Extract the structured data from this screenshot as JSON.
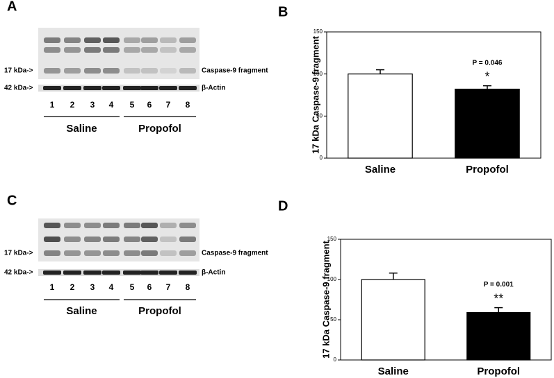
{
  "chart_data": [
    {
      "type": "bar",
      "panel_label": "B",
      "ylabel": "17 kDa Caspase-9 fragment",
      "categories": [
        "Saline",
        "Propofol"
      ],
      "values": [
        100,
        82
      ],
      "errors": [
        5,
        4
      ],
      "colors": [
        "#ffffff",
        "#000000"
      ],
      "ylim": [
        0,
        150
      ],
      "yticks": [
        0,
        50,
        100,
        150
      ],
      "p_value": "P = 0.046",
      "significance": "*"
    },
    {
      "type": "bar",
      "panel_label": "D",
      "ylabel": "17 kDa Caspase-9 fragment",
      "categories": [
        "Saline",
        "Propofol"
      ],
      "values": [
        100,
        59
      ],
      "errors": [
        8,
        6
      ],
      "colors": [
        "#ffffff",
        "#000000"
      ],
      "ylim": [
        0,
        150
      ],
      "yticks": [
        0,
        50,
        100,
        150
      ],
      "p_value": "P = 0.001",
      "significance": "**"
    }
  ],
  "blots": [
    {
      "panel_label": "A",
      "markers": [
        "17 kDa->",
        "42 kDa->"
      ],
      "bands": [
        "Caspase-9 fragment",
        "β-Actin"
      ],
      "lanes": [
        "1",
        "2",
        "3",
        "4",
        "5",
        "6",
        "7",
        "8"
      ],
      "groups": [
        "Saline",
        "Propofol"
      ]
    },
    {
      "panel_label": "C",
      "markers": [
        "17 kDa->",
        "42 kDa->"
      ],
      "bands": [
        "Caspase-9 fragment",
        "β-Actin"
      ],
      "lanes": [
        "1",
        "2",
        "3",
        "4",
        "5",
        "6",
        "7",
        "8"
      ],
      "groups": [
        "Saline",
        "Propofol"
      ]
    }
  ]
}
